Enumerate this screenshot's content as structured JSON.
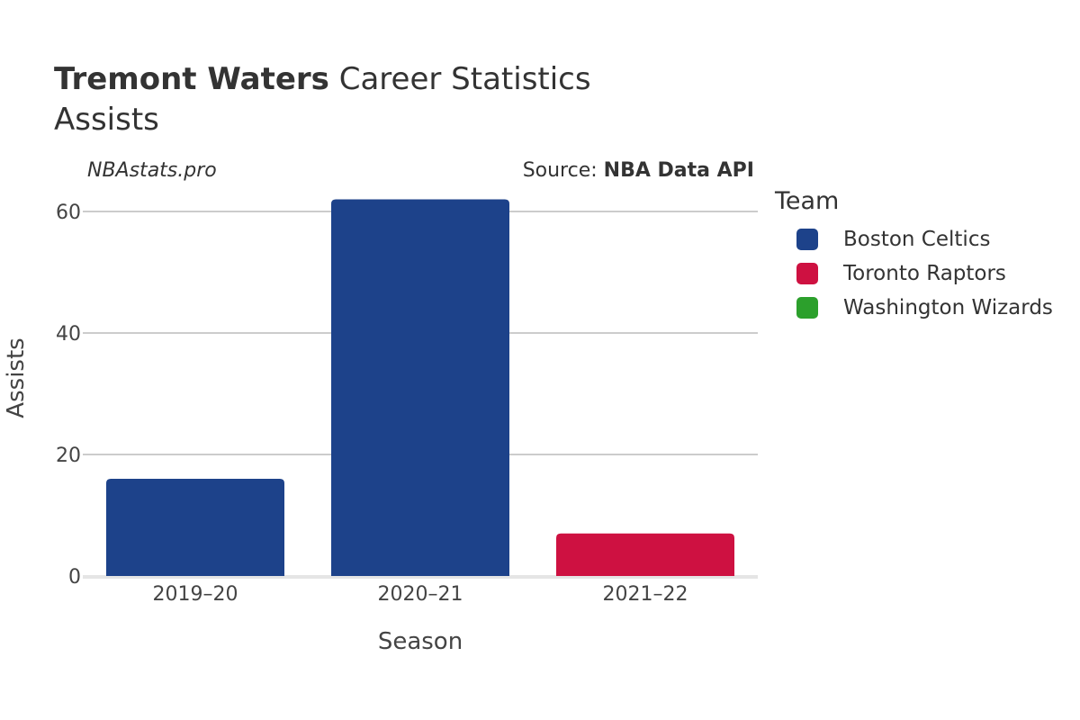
{
  "title": {
    "player": "Tremont Waters",
    "rest": "Career Statistics"
  },
  "subtitle": "Assists",
  "site_label": "NBAstats.pro",
  "source": {
    "prefix": "Source: ",
    "name": "NBA Data API"
  },
  "legend": {
    "title": "Team",
    "items": [
      {
        "label": "Boston Celtics",
        "color": "#1d428a"
      },
      {
        "label": "Toronto Raptors",
        "color": "#ce1141"
      },
      {
        "label": "Washington Wizards",
        "color": "#2ca02c"
      }
    ]
  },
  "chart_data": {
    "type": "bar",
    "title": "Tremont Waters Career Statistics",
    "subtitle": "Assists",
    "xlabel": "Season",
    "ylabel": "Assists",
    "categories": [
      "2019–20",
      "2020–21",
      "2021–22"
    ],
    "values": [
      16,
      62,
      7
    ],
    "bar_teams": [
      "Boston Celtics",
      "Boston Celtics",
      "Toronto Raptors"
    ],
    "bar_colors": [
      "#1d428a",
      "#1d428a",
      "#ce1141"
    ],
    "yticks": [
      0,
      20,
      40,
      60
    ],
    "ylim": [
      0,
      65
    ],
    "grid": true,
    "legend_position": "right"
  }
}
